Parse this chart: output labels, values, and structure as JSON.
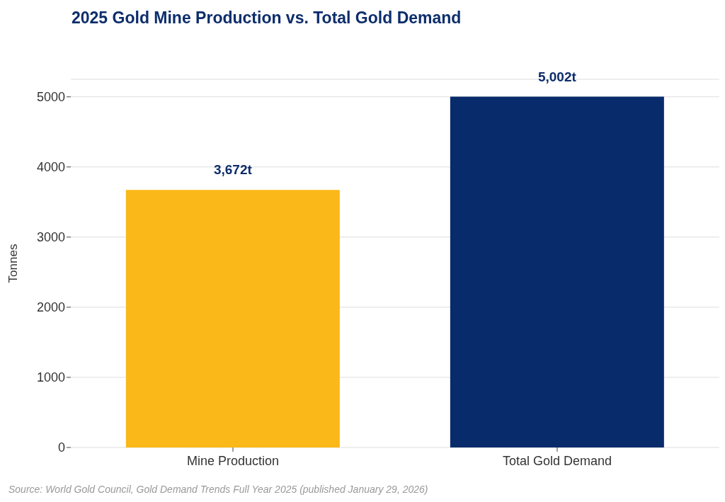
{
  "chart_data": {
    "type": "bar",
    "title": "2025 Gold Mine Production vs. Total Gold Demand",
    "categories": [
      "Mine Production",
      "Total Gold Demand"
    ],
    "values": [
      3672,
      5002
    ],
    "colors": [
      "#fbb819",
      "#082c6b"
    ],
    "value_labels": [
      "3,672t",
      "5,002t"
    ],
    "ylabel": "Tonnes",
    "ylim": [
      0,
      5250
    ],
    "yticks": [
      0,
      1000,
      2000,
      3000,
      4000,
      5000
    ],
    "grid": "y",
    "annotations": [
      "Source: World Gold Council, Gold Demand Trends Full Year 2025 (published January 29, 2026)"
    ]
  }
}
